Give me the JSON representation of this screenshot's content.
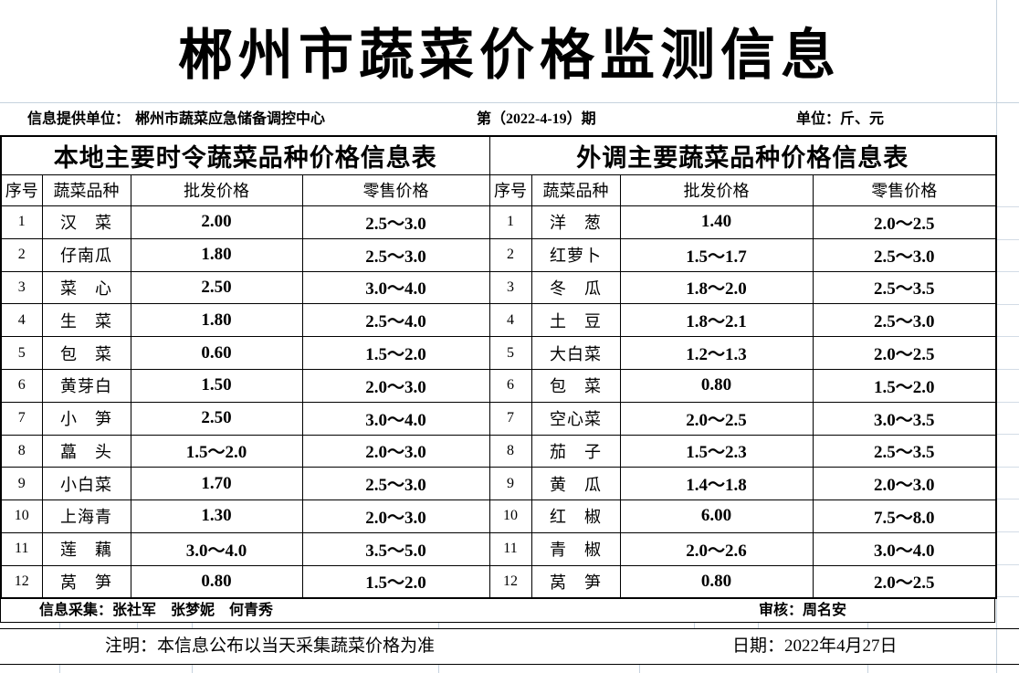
{
  "title": "郴州市蔬菜价格监测信息",
  "info_bar": {
    "provider_label": "信息提供单位：",
    "provider_value": "郴州市蔬菜应急储备调控中心",
    "issue": "第（2022-4-19）期",
    "unit": "单位：斤、元"
  },
  "columns": [
    "序号",
    "蔬菜品种",
    "批发价格",
    "零售价格"
  ],
  "tables": [
    {
      "title": "本地主要时令蔬菜品种价格信息表",
      "rows": [
        {
          "no": "1",
          "name": "汉　菜",
          "wholesale": "2.00",
          "retail": "2.5～3.0"
        },
        {
          "no": "2",
          "name": "仔南瓜",
          "wholesale": "1.80",
          "retail": "2.5～3.0"
        },
        {
          "no": "3",
          "name": "菜　心",
          "wholesale": "2.50",
          "retail": "3.0～4.0"
        },
        {
          "no": "4",
          "name": "生　菜",
          "wholesale": "1.80",
          "retail": "2.5～4.0"
        },
        {
          "no": "5",
          "name": "包　菜",
          "wholesale": "0.60",
          "retail": "1.5～2.0"
        },
        {
          "no": "6",
          "name": "黄芽白",
          "wholesale": "1.50",
          "retail": "2.0～3.0"
        },
        {
          "no": "7",
          "name": "小　笋",
          "wholesale": "2.50",
          "retail": "3.0～4.0"
        },
        {
          "no": "8",
          "name": "藠　头",
          "wholesale": "1.5～2.0",
          "retail": "2.0～3.0"
        },
        {
          "no": "9",
          "name": "小白菜",
          "wholesale": "1.70",
          "retail": "2.5～3.0"
        },
        {
          "no": "10",
          "name": "上海青",
          "wholesale": "1.30",
          "retail": "2.0～3.0"
        },
        {
          "no": "11",
          "name": "莲　藕",
          "wholesale": "3.0～4.0",
          "retail": "3.5～5.0"
        },
        {
          "no": "12",
          "name": "莴　笋",
          "wholesale": "0.80",
          "retail": "1.5～2.0"
        }
      ]
    },
    {
      "title": "外调主要蔬菜品种价格信息表",
      "rows": [
        {
          "no": "1",
          "name": "洋　葱",
          "wholesale": "1.40",
          "retail": "2.0～2.5"
        },
        {
          "no": "2",
          "name": "红萝卜",
          "wholesale": "1.5～1.7",
          "retail": "2.5～3.0"
        },
        {
          "no": "3",
          "name": "冬　瓜",
          "wholesale": "1.8～2.0",
          "retail": "2.5～3.5"
        },
        {
          "no": "4",
          "name": "土　豆",
          "wholesale": "1.8～2.1",
          "retail": "2.5～3.0"
        },
        {
          "no": "5",
          "name": "大白菜",
          "wholesale": "1.2～1.3",
          "retail": "2.0～2.5"
        },
        {
          "no": "6",
          "name": "包　菜",
          "wholesale": "0.80",
          "retail": "1.5～2.0"
        },
        {
          "no": "7",
          "name": "空心菜",
          "wholesale": "2.0～2.5",
          "retail": "3.0～3.5"
        },
        {
          "no": "8",
          "name": "茄　子",
          "wholesale": "1.5～2.3",
          "retail": "2.5～3.5"
        },
        {
          "no": "9",
          "name": "黄　瓜",
          "wholesale": "1.4～1.8",
          "retail": "2.0～3.0"
        },
        {
          "no": "10",
          "name": "红　椒",
          "wholesale": "6.00",
          "retail": "7.5～8.0"
        },
        {
          "no": "11",
          "name": "青　椒",
          "wholesale": "2.0～2.6",
          "retail": "3.0～4.0"
        },
        {
          "no": "12",
          "name": "莴　笋",
          "wholesale": "0.80",
          "retail": "2.0～2.5"
        }
      ]
    }
  ],
  "footer": {
    "collectors": "信息采集：张社军　张梦妮　何青秀",
    "auditor": "审核：周名安",
    "note": "注明：本信息公布以当天采集蔬菜价格为准",
    "date": "日期：2022年4月27日"
  },
  "colors": {
    "text": "#000000",
    "table_border": "#000000",
    "gridline": "#c6d2de",
    "background": "#ffffff"
  }
}
